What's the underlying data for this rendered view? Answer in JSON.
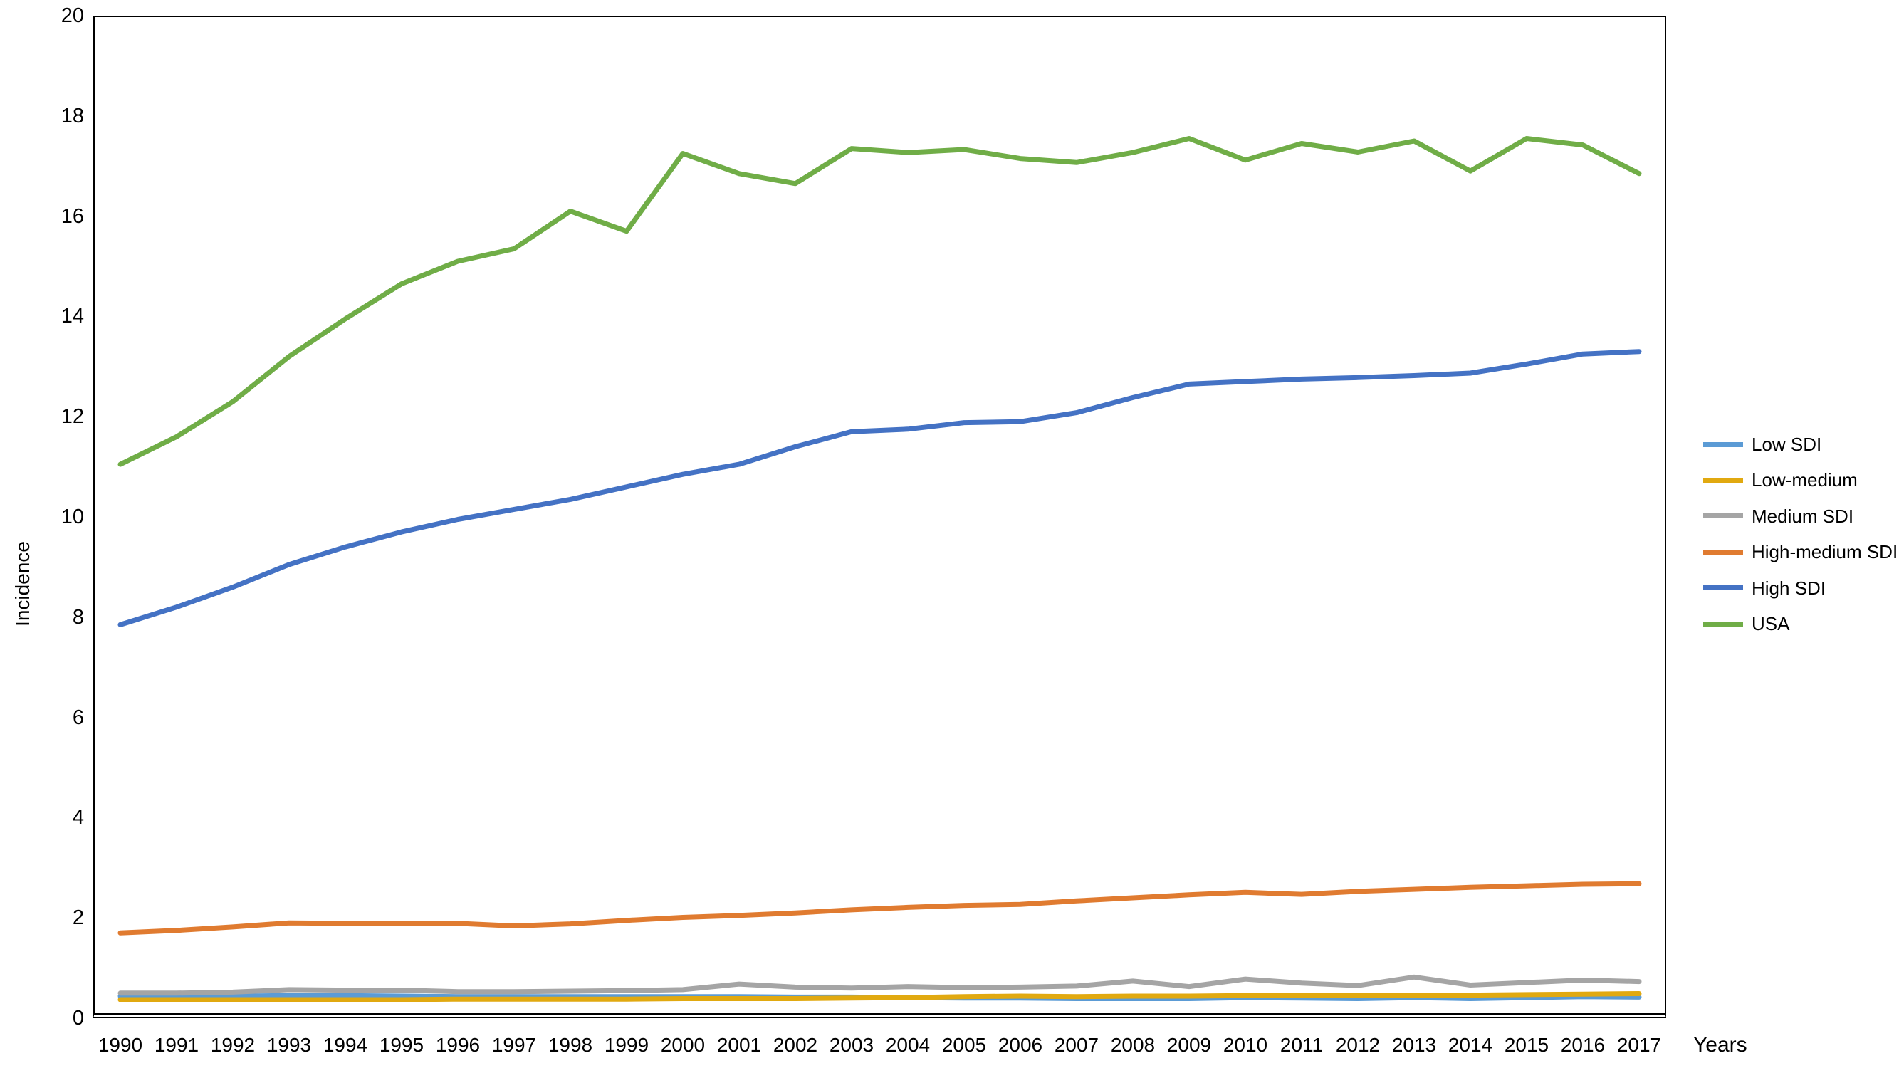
{
  "figure": {
    "background": "#FFFFFF",
    "border_color": "#000000"
  },
  "axes": {
    "y": {
      "title": "Incidence",
      "min": 0,
      "max": 20,
      "tick_step": 2,
      "ticks": [
        20,
        18,
        16,
        14,
        12,
        10,
        8,
        6,
        4,
        2,
        0
      ]
    },
    "x": {
      "title": "Years",
      "ticks": [
        "1990",
        "1991",
        "1992",
        "1993",
        "1994",
        "1995",
        "1996",
        "1997",
        "1998",
        "1999",
        "2000",
        "2001",
        "2002",
        "2003",
        "2004",
        "2005",
        "2006",
        "2007",
        "2008",
        "2009",
        "2010",
        "2011",
        "2012",
        "2013",
        "2014",
        "2015",
        "2016",
        "2017"
      ]
    }
  },
  "legend": {
    "position": "right-center",
    "items": [
      {
        "label": "Low SDI",
        "color": "#5B9BD5"
      },
      {
        "label": "Low-medium",
        "color": "#E1A910"
      },
      {
        "label": "Medium SDI",
        "color": "#A5A5A5"
      },
      {
        "label": "High-medium SDI",
        "color": "#E07B30"
      },
      {
        "label": "High SDI",
        "color": "#4472C4"
      },
      {
        "label": "USA",
        "color": "#70AD47"
      }
    ]
  },
  "chart_data": {
    "type": "line",
    "title": "",
    "xlabel": "Years",
    "ylabel": "Incidence",
    "ylim": [
      0,
      20
    ],
    "grid": false,
    "legend_position": "right-center",
    "x": [
      1990,
      1991,
      1992,
      1993,
      1994,
      1995,
      1996,
      1997,
      1998,
      1999,
      2000,
      2001,
      2002,
      2003,
      2004,
      2005,
      2006,
      2007,
      2008,
      2009,
      2010,
      2011,
      2012,
      2013,
      2014,
      2015,
      2016,
      2017
    ],
    "series": [
      {
        "name": "Low SDI",
        "color": "#5B9BD5",
        "values": [
          0.44,
          0.44,
          0.44,
          0.45,
          0.45,
          0.44,
          0.43,
          0.43,
          0.43,
          0.43,
          0.43,
          0.43,
          0.42,
          0.42,
          0.41,
          0.4,
          0.4,
          0.39,
          0.39,
          0.39,
          0.41,
          0.4,
          0.39,
          0.41,
          0.39,
          0.41,
          0.43,
          0.42
        ]
      },
      {
        "name": "Low-medium",
        "color": "#E1A910",
        "values": [
          0.37,
          0.37,
          0.37,
          0.37,
          0.37,
          0.37,
          0.38,
          0.38,
          0.38,
          0.38,
          0.39,
          0.39,
          0.39,
          0.4,
          0.41,
          0.43,
          0.44,
          0.43,
          0.44,
          0.44,
          0.45,
          0.45,
          0.46,
          0.46,
          0.46,
          0.47,
          0.48,
          0.49
        ]
      },
      {
        "name": "Medium SDI",
        "color": "#A5A5A5",
        "values": [
          0.5,
          0.5,
          0.52,
          0.57,
          0.56,
          0.56,
          0.53,
          0.53,
          0.54,
          0.55,
          0.57,
          0.68,
          0.62,
          0.6,
          0.63,
          0.61,
          0.62,
          0.64,
          0.74,
          0.63,
          0.78,
          0.7,
          0.65,
          0.82,
          0.66,
          0.71,
          0.76,
          0.73
        ]
      },
      {
        "name": "High-medium SDI",
        "color": "#E07B30",
        "values": [
          1.7,
          1.75,
          1.82,
          1.9,
          1.89,
          1.89,
          1.89,
          1.84,
          1.88,
          1.95,
          2.01,
          2.05,
          2.1,
          2.16,
          2.21,
          2.25,
          2.27,
          2.34,
          2.4,
          2.46,
          2.51,
          2.47,
          2.53,
          2.57,
          2.61,
          2.64,
          2.67,
          2.68
        ]
      },
      {
        "name": "High SDI",
        "color": "#4472C4",
        "values": [
          7.85,
          8.2,
          8.6,
          9.05,
          9.4,
          9.7,
          9.95,
          10.15,
          10.35,
          10.6,
          10.85,
          11.05,
          11.4,
          11.7,
          11.75,
          11.88,
          11.9,
          12.08,
          12.38,
          12.65,
          12.7,
          12.75,
          12.78,
          12.82,
          12.87,
          13.05,
          13.25,
          13.3
        ]
      },
      {
        "name": "USA",
        "color": "#70AD47",
        "values": [
          11.05,
          11.6,
          12.3,
          13.2,
          13.95,
          14.65,
          15.1,
          15.35,
          16.1,
          15.7,
          17.25,
          16.85,
          16.65,
          17.35,
          17.27,
          17.33,
          17.15,
          17.07,
          17.27,
          17.55,
          17.12,
          17.45,
          17.28,
          17.5,
          16.9,
          17.55,
          17.42,
          16.85
        ]
      }
    ]
  }
}
